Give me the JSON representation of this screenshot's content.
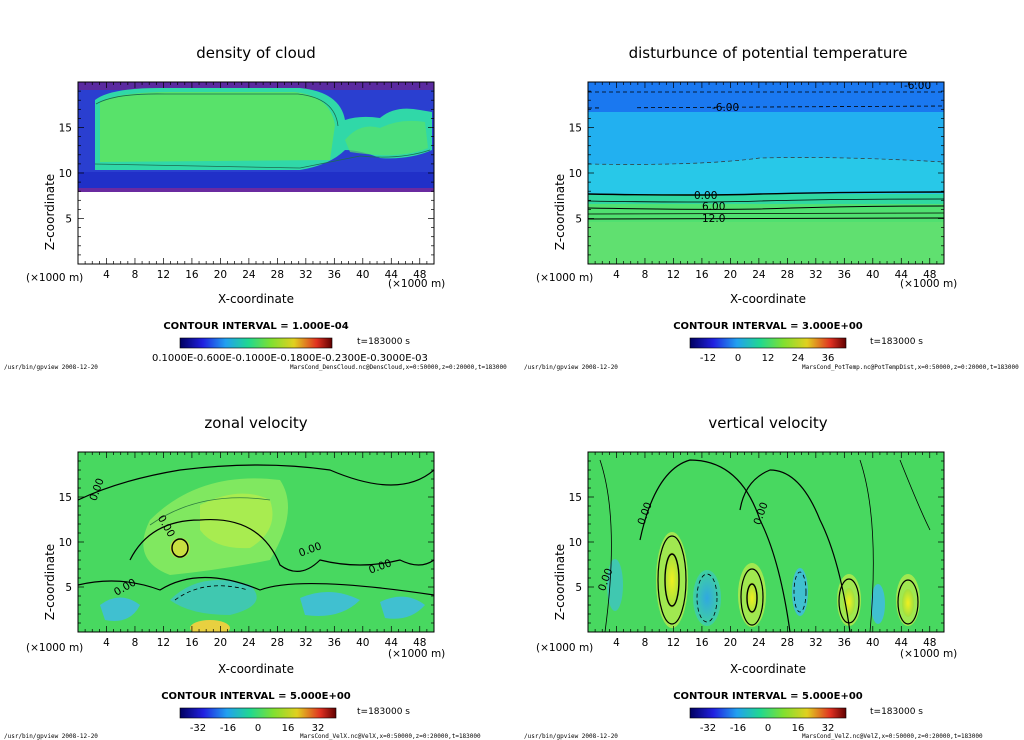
{
  "chart_data": [
    {
      "type": "heatmap",
      "title": "density of cloud",
      "xlabel": "X-coordinate",
      "ylabel": "Z-coordinate",
      "x_unit": "(×1000 m)",
      "y_unit": "(×1000 m)",
      "xlim": [
        0,
        50
      ],
      "ylim": [
        0,
        20
      ],
      "x_ticks": [
        4,
        8,
        12,
        16,
        20,
        24,
        28,
        32,
        36,
        40,
        44,
        48
      ],
      "y_ticks": [
        5,
        10,
        15
      ],
      "contour_interval": "CONTOUR INTERVAL = 1.000E-04",
      "time": "t=183000 s",
      "colorbar_labels": "0.1000E-0.600E-0.1000E-0.1800E-0.2300E-0.3000E-03",
      "footer_left": "/usr/bin/gpview  2008-12-20",
      "footer_right": "MarsCond_DensCloud.nc@DensCloud,x=0:50000,z=0:20000,t=183000",
      "contour_labels": [],
      "colors": [
        "#1010c0",
        "#7a2aa0",
        "#20d0a0",
        "#50e060"
      ]
    },
    {
      "type": "heatmap",
      "title": "disturbunce of potential temperature",
      "xlabel": "X-coordinate",
      "ylabel": "Z-coordinate",
      "x_unit": "(×1000 m)",
      "y_unit": "(×1000 m)",
      "xlim": [
        0,
        50
      ],
      "ylim": [
        0,
        20
      ],
      "x_ticks": [
        4,
        8,
        12,
        16,
        20,
        24,
        28,
        32,
        36,
        40,
        44,
        48
      ],
      "y_ticks": [
        5,
        10,
        15
      ],
      "contour_interval": "CONTOUR INTERVAL = 3.000E+00",
      "time": "t=183000 s",
      "colorbar_ticks": [
        "-12",
        "0",
        "12",
        "24",
        "36"
      ],
      "footer_left": "/usr/bin/gpview  2008-12-20",
      "footer_right": "MarsCond_PotTemp.nc@PotTempDist,x=0:50000,z=0:20000,t=183000",
      "contour_labels": [
        "-6.00",
        "-6.00",
        "0.00",
        "6.00",
        "12.0"
      ],
      "colors": [
        "#1a78f0",
        "#22b8f0",
        "#60e070"
      ]
    },
    {
      "type": "heatmap",
      "title": "zonal velocity",
      "xlabel": "X-coordinate",
      "ylabel": "Z-coordinate",
      "x_unit": "(×1000 m)",
      "y_unit": "(×1000 m)",
      "xlim": [
        0,
        50
      ],
      "ylim": [
        0,
        20
      ],
      "x_ticks": [
        4,
        8,
        12,
        16,
        20,
        24,
        28,
        32,
        36,
        40,
        44,
        48
      ],
      "y_ticks": [
        5,
        10,
        15
      ],
      "contour_interval": "CONTOUR INTERVAL = 5.000E+00",
      "time": "t=183000 s",
      "colorbar_ticks": [
        "-32",
        "-16",
        "0",
        "16",
        "32"
      ],
      "footer_left": "/usr/bin/gpview  2008-12-20",
      "footer_right": "MarsCond_VelX.nc@VelX,x=0:50000,z=0:20000,t=183000",
      "contour_labels": [
        "0.00",
        "0.00",
        "0.00",
        "0.00",
        "0.00"
      ],
      "colors": [
        "#40d060",
        "#80e860",
        "#40c0d0",
        "#c8e040"
      ]
    },
    {
      "type": "heatmap",
      "title": "vertical velocity",
      "xlabel": "X-coordinate",
      "ylabel": "Z-coordinate",
      "x_unit": "(×1000 m)",
      "y_unit": "(×1000 m)",
      "xlim": [
        0,
        50
      ],
      "ylim": [
        0,
        20
      ],
      "x_ticks": [
        4,
        8,
        12,
        16,
        20,
        24,
        28,
        32,
        36,
        40,
        44,
        48
      ],
      "y_ticks": [
        5,
        10,
        15
      ],
      "contour_interval": "CONTOUR INTERVAL = 5.000E+00",
      "time": "t=183000 s",
      "colorbar_ticks": [
        "-32",
        "-16",
        "0",
        "16",
        "32"
      ],
      "footer_left": "/usr/bin/gpview  2008-12-20",
      "footer_right": "MarsCond_VelZ.nc@VelZ,x=0:50000,z=0:20000,t=183000",
      "contour_labels": [
        "0.00",
        "0.00",
        "0.00"
      ],
      "colors": [
        "#40d060",
        "#80e860",
        "#40c0d0",
        "#e8e030"
      ]
    }
  ]
}
